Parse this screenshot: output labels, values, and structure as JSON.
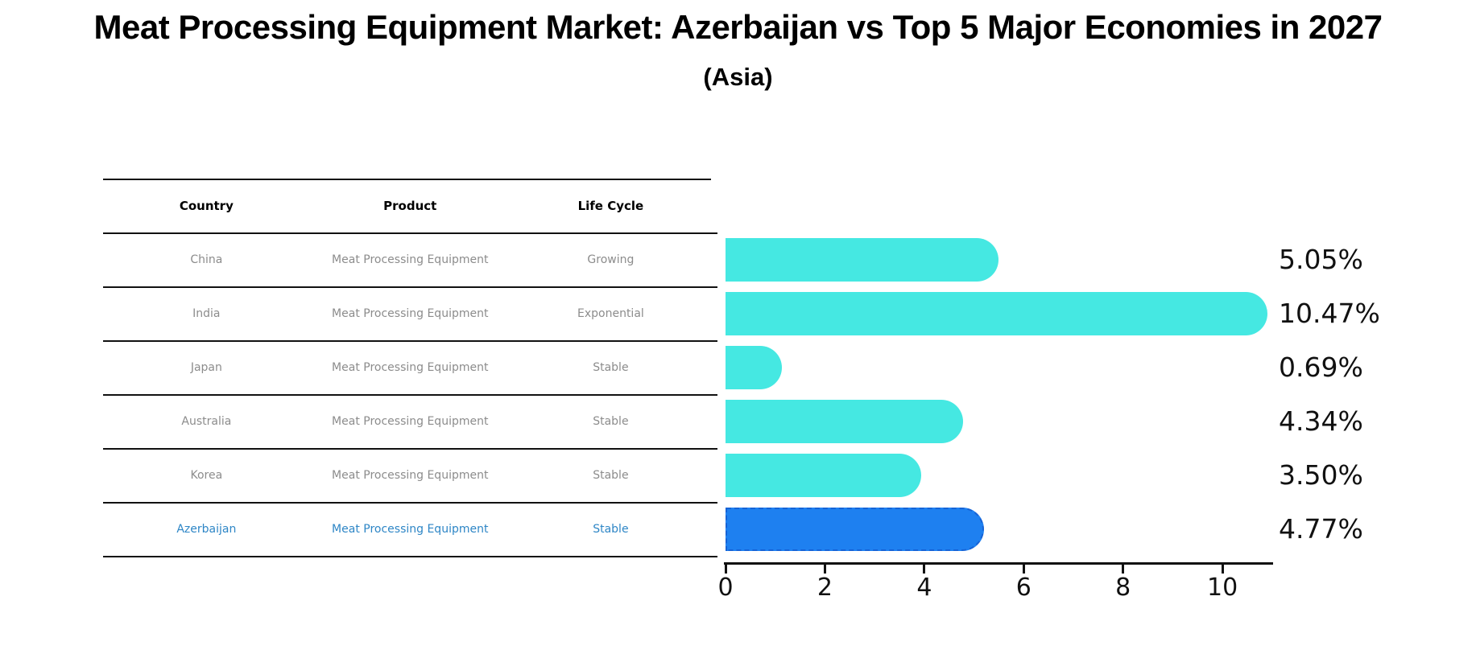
{
  "header": {
    "title": "Meat Processing Equipment Market: Azerbaijan vs Top 5 Major Economies in 2027",
    "subtitle": "(Asia)"
  },
  "table": {
    "columns": [
      "Country",
      "Product",
      "Life Cycle"
    ],
    "rows": [
      {
        "country": "China",
        "product": "Meat Processing Equipment",
        "life_cycle": "Growing",
        "highlight": false
      },
      {
        "country": "India",
        "product": "Meat Processing Equipment",
        "life_cycle": "Exponential",
        "highlight": false
      },
      {
        "country": "Japan",
        "product": "Meat Processing Equipment",
        "life_cycle": "Stable",
        "highlight": false
      },
      {
        "country": "Australia",
        "product": "Meat Processing Equipment",
        "life_cycle": "Stable",
        "highlight": false
      },
      {
        "country": "Korea",
        "product": "Meat Processing Equipment",
        "life_cycle": "Stable",
        "highlight": false
      },
      {
        "country": "Azerbaijan",
        "product": "Meat Processing Equipment",
        "life_cycle": "Stable",
        "highlight": true
      }
    ]
  },
  "chart_data": {
    "type": "bar",
    "orientation": "horizontal",
    "title": "Meat Processing Equipment Market: Azerbaijan vs Top 5 Major Economies in 2027 (Asia)",
    "categories": [
      "China",
      "India",
      "Japan",
      "Australia",
      "Korea",
      "Azerbaijan"
    ],
    "values": [
      5.05,
      10.47,
      0.69,
      4.34,
      3.5,
      4.77
    ],
    "value_labels": [
      "5.05%",
      "10.47%",
      "0.69%",
      "4.34%",
      "3.50%",
      "4.77%"
    ],
    "x_ticks": [
      "0",
      "2",
      "4",
      "6",
      "8",
      "10"
    ],
    "xlim": [
      0,
      11
    ],
    "grid": false,
    "legend": false,
    "highlight_index": 5,
    "colors": {
      "bar": "#45E8E2",
      "highlight_bar": "#1E80F0",
      "highlight_border": "#1663D6",
      "highlight_text": "#2E86C6",
      "row_text": "#8C8C8C",
      "axis": "#111111"
    }
  }
}
